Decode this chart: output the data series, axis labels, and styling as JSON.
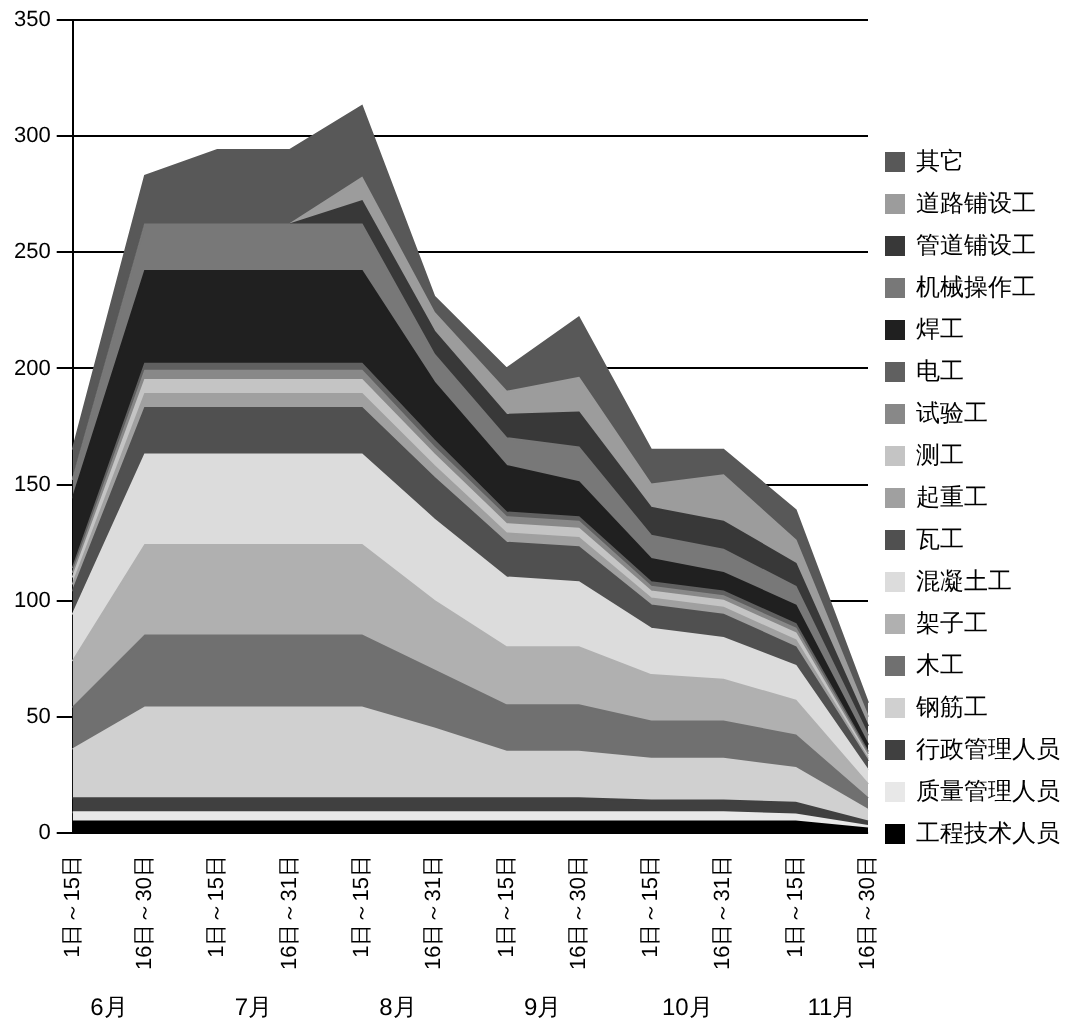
{
  "chart_data": {
    "type": "area",
    "stacked": true,
    "categories": [
      "1日～15日",
      "16日～30日",
      "1日～15日",
      "16日～31日",
      "1日～15日",
      "16日～31日",
      "1日～15日",
      "16日～30日",
      "1日～15日",
      "16日～31日",
      "1日～15日",
      "16日～30日"
    ],
    "annotations": [
      "6月",
      "7月",
      "8月",
      "9月",
      "10月",
      "11月"
    ],
    "ylim": [
      0,
      350
    ],
    "yticks": [
      0,
      50,
      100,
      150,
      200,
      250,
      300,
      350
    ],
    "grid": "y",
    "legend": "right",
    "marker": "none",
    "series": [
      {
        "name": "工程技术人员",
        "color": "#000000",
        "values": [
          5,
          5,
          5,
          5,
          5,
          5,
          5,
          5,
          5,
          5,
          5,
          2
        ]
      },
      {
        "name": "质量管理人员",
        "color": "#e8e8e8",
        "values": [
          4,
          4,
          4,
          4,
          4,
          4,
          4,
          4,
          4,
          4,
          3,
          1
        ]
      },
      {
        "name": "行政管理人员",
        "color": "#404040",
        "values": [
          6,
          6,
          6,
          6,
          6,
          6,
          6,
          6,
          5,
          5,
          5,
          2
        ]
      },
      {
        "name": "钢筋工",
        "color": "#d0d0d0",
        "values": [
          21,
          39,
          39,
          39,
          39,
          30,
          20,
          20,
          18,
          18,
          15,
          5
        ]
      },
      {
        "name": "木工",
        "color": "#707070",
        "values": [
          18,
          31,
          31,
          31,
          31,
          25,
          20,
          20,
          16,
          16,
          14,
          5
        ]
      },
      {
        "name": "架子工",
        "color": "#b0b0b0",
        "values": [
          20,
          39,
          39,
          39,
          39,
          30,
          25,
          25,
          20,
          18,
          15,
          6
        ]
      },
      {
        "name": "混凝土工",
        "color": "#dcdcdc",
        "values": [
          20,
          39,
          39,
          39,
          39,
          35,
          30,
          28,
          20,
          18,
          15,
          6
        ]
      },
      {
        "name": "瓦工",
        "color": "#505050",
        "values": [
          10,
          20,
          20,
          20,
          20,
          18,
          15,
          15,
          10,
          10,
          8,
          4
        ]
      },
      {
        "name": "起重工",
        "color": "#a0a0a0",
        "values": [
          3,
          6,
          6,
          6,
          6,
          5,
          4,
          4,
          3,
          3,
          3,
          1
        ]
      },
      {
        "name": "测工",
        "color": "#c4c4c4",
        "values": [
          3,
          6,
          6,
          6,
          6,
          5,
          4,
          4,
          3,
          3,
          3,
          1
        ]
      },
      {
        "name": "试验工",
        "color": "#888888",
        "values": [
          2,
          4,
          4,
          4,
          4,
          3,
          3,
          3,
          2,
          2,
          2,
          1
        ]
      },
      {
        "name": "电工",
        "color": "#606060",
        "values": [
          2,
          3,
          3,
          3,
          3,
          3,
          2,
          2,
          2,
          2,
          2,
          1
        ]
      },
      {
        "name": "焊工",
        "color": "#202020",
        "values": [
          30,
          40,
          40,
          40,
          40,
          25,
          20,
          15,
          10,
          8,
          8,
          3
        ]
      },
      {
        "name": "机械操作工",
        "color": "#787878",
        "values": [
          8,
          20,
          20,
          20,
          20,
          12,
          12,
          15,
          10,
          10,
          8,
          4
        ]
      },
      {
        "name": "管道铺设工",
        "color": "#383838",
        "values": [
          0,
          0,
          0,
          0,
          10,
          10,
          10,
          15,
          12,
          12,
          10,
          4
        ]
      },
      {
        "name": "道路铺设工",
        "color": "#9c9c9c",
        "values": [
          0,
          0,
          0,
          0,
          10,
          8,
          10,
          15,
          10,
          20,
          10,
          4
        ]
      },
      {
        "name": "其它",
        "color": "#585858",
        "values": [
          13,
          21,
          32,
          32,
          31,
          7,
          10,
          26,
          15,
          11,
          13,
          6
        ]
      }
    ]
  }
}
